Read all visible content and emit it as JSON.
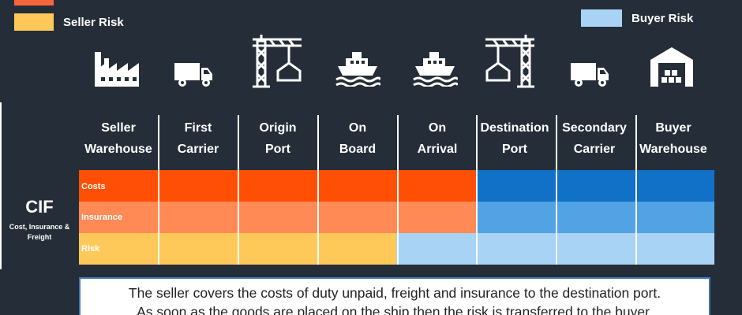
{
  "legend": {
    "seller": {
      "label": "Seller Risk",
      "color": "#ffc95a"
    },
    "buyer": {
      "label": "Buyer Risk",
      "color": "#a9d3f5"
    },
    "top_color": "#f5673a"
  },
  "term": {
    "code": "CIF",
    "name_line1": "Cost, Insurance &",
    "name_line2": "Freight"
  },
  "stages": [
    {
      "line1": "Seller",
      "line2": "Warehouse",
      "icon": "factory-icon"
    },
    {
      "line1": "First",
      "line2": "Carrier",
      "icon": "truck-icon"
    },
    {
      "line1": "Origin",
      "line2": "Port",
      "icon": "crane-icon"
    },
    {
      "line1": "On",
      "line2": "Board",
      "icon": "ship-icon"
    },
    {
      "line1": "On",
      "line2": "Arrival",
      "icon": "ship-icon"
    },
    {
      "line1": "Destination",
      "line2": "Port",
      "icon": "crane-icon"
    },
    {
      "line1": "Secondary",
      "line2": "Carrier",
      "icon": "truck-icon"
    },
    {
      "line1": "Buyer",
      "line2": "Warehouse",
      "icon": "warehouse-icon"
    }
  ],
  "rows": [
    {
      "label": "Costs",
      "seller_color": "#ff4f05",
      "buyer_color": "#1071c7",
      "seller_until": 5
    },
    {
      "label": "Insurance",
      "seller_color": "#ff8a55",
      "buyer_color": "#51a3e4",
      "seller_until": 5
    },
    {
      "label": "Risk",
      "seller_color": "#ffc95a",
      "buyer_color": "#a9d3f5",
      "seller_until": 4
    }
  ],
  "description": {
    "line1": "The seller covers the costs of duty unpaid, freight and insurance to the destination port.",
    "line2": "As soon as the goods are placed on the ship then the risk is transferred to the buyer."
  }
}
